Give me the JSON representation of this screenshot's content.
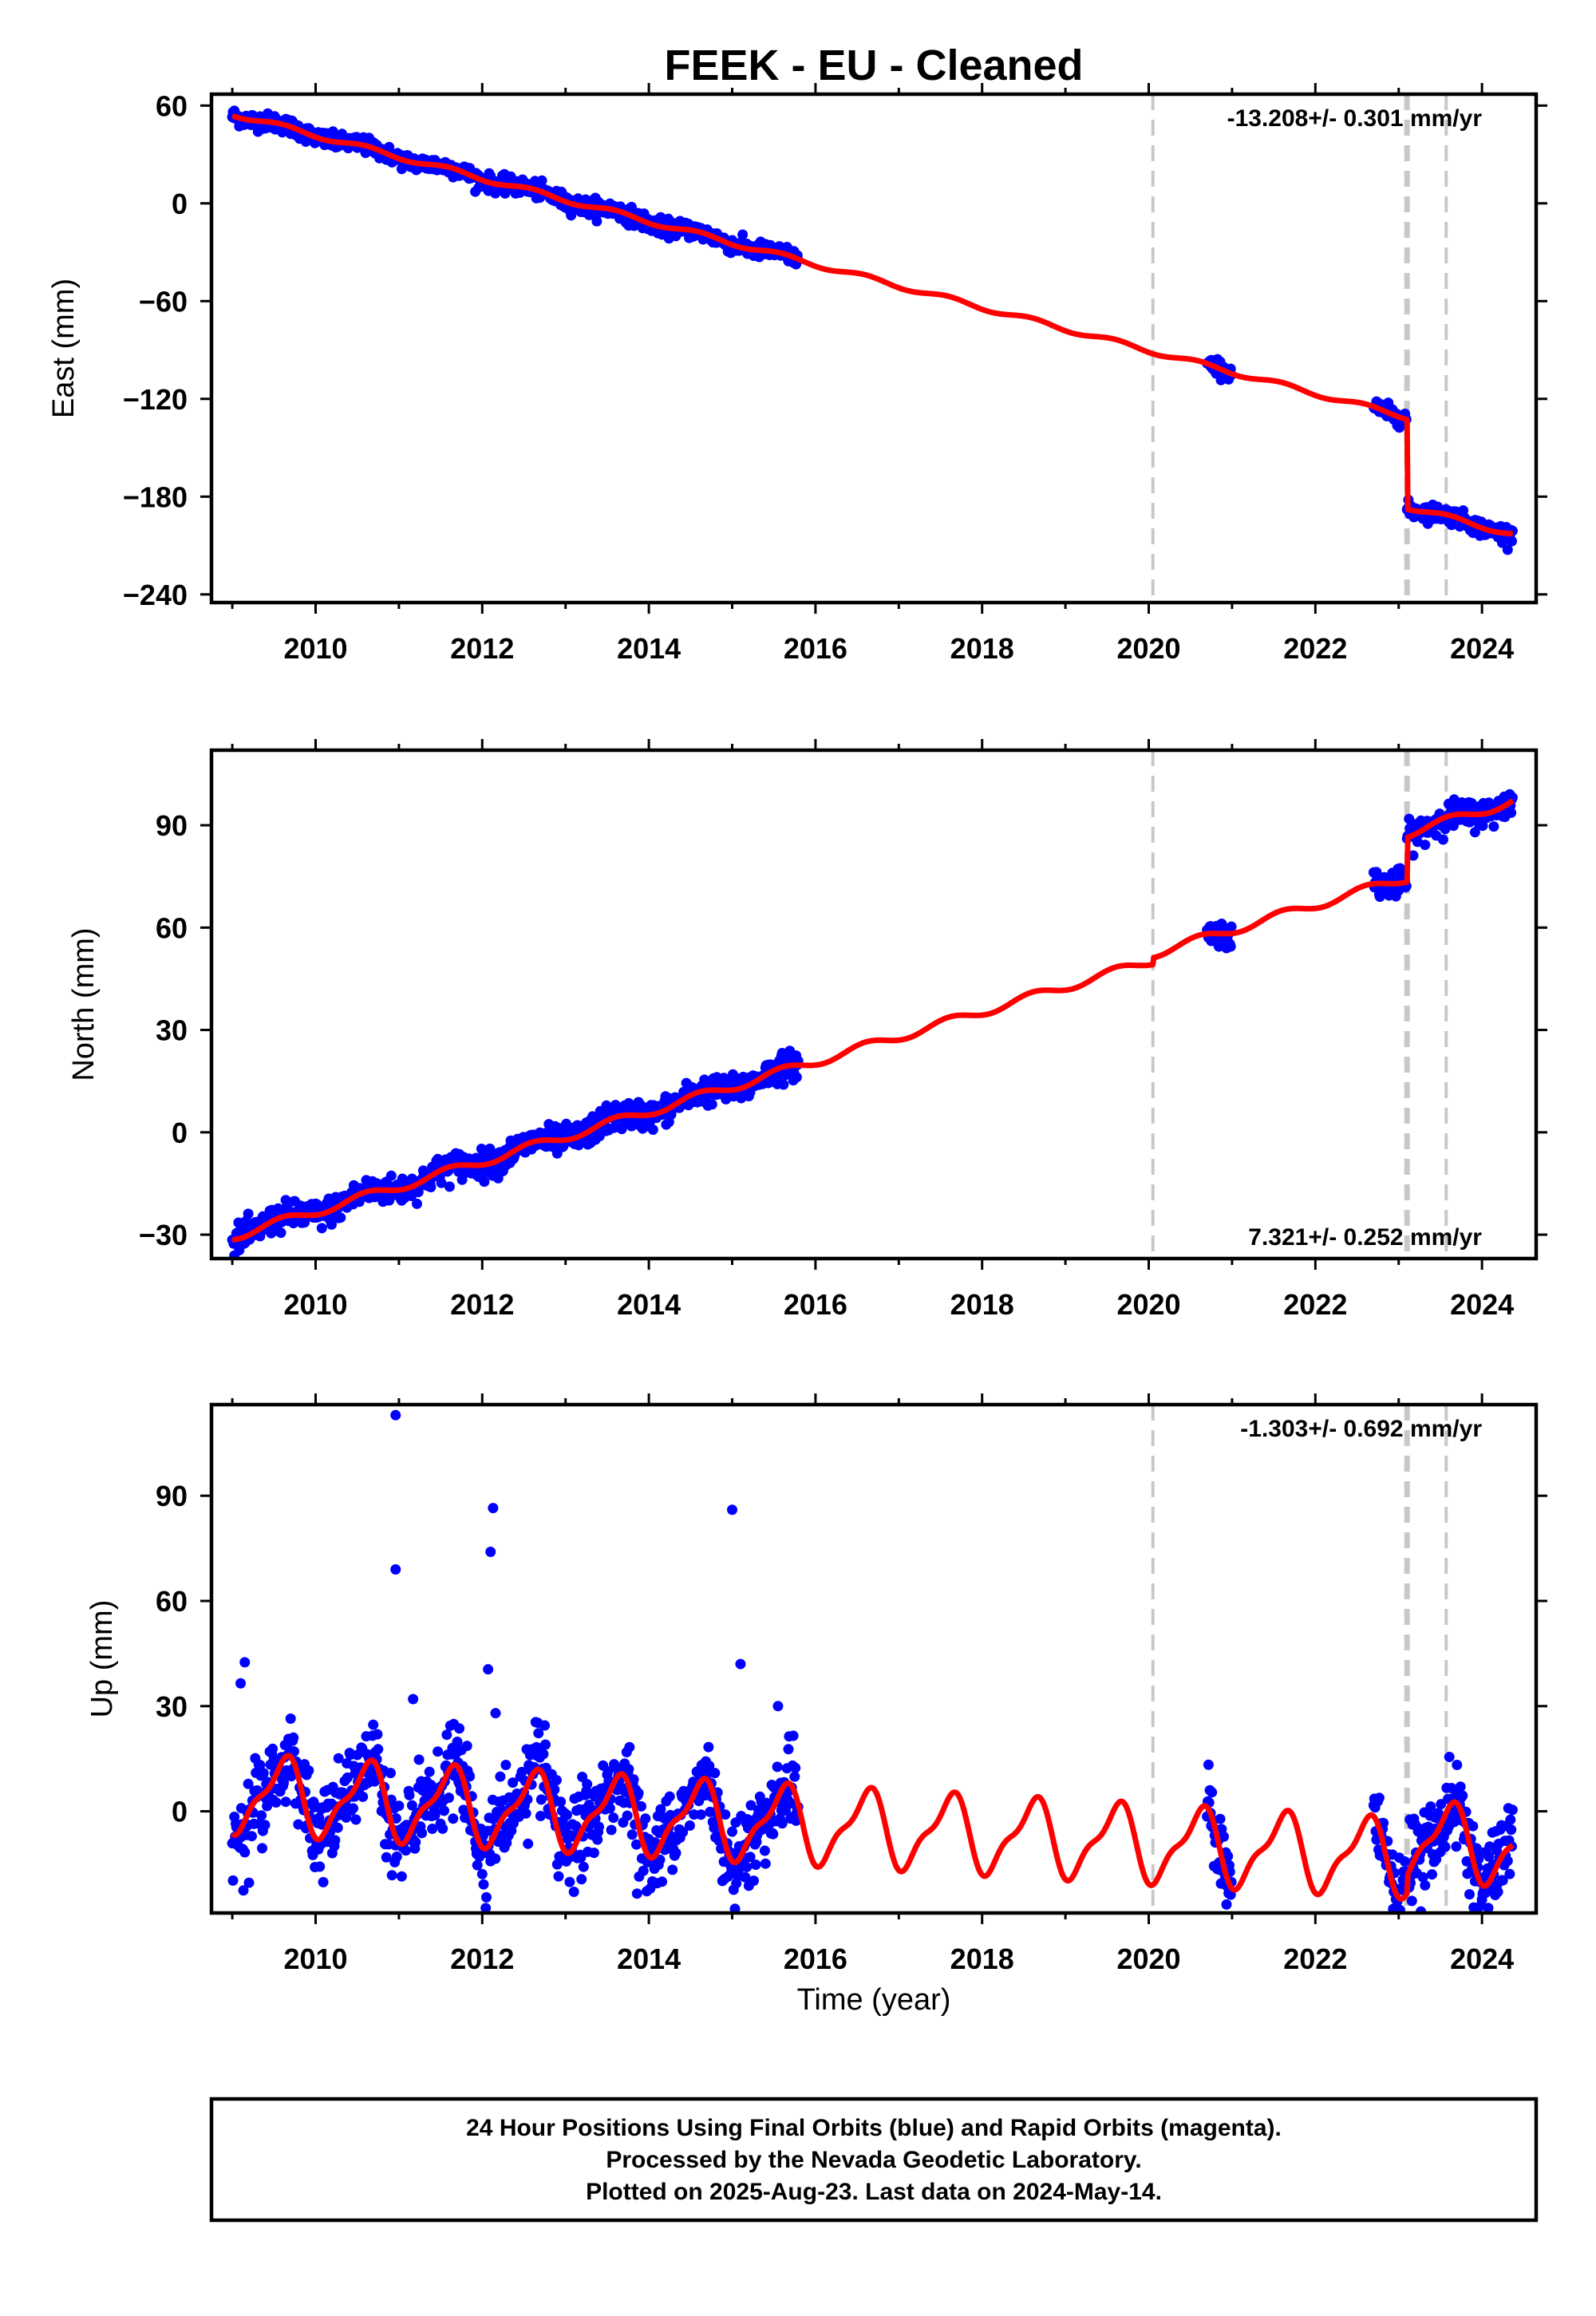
{
  "chart_data": [
    {
      "type": "scatter",
      "title": "FEEK  - EU - Cleaned",
      "ylabel": "East (mm)",
      "rate_label": "-13.208+/- 0.301 mm/yr",
      "xlim": [
        2008.75,
        2024.65
      ],
      "ylim": [
        -245,
        67
      ],
      "xticks": [
        2010,
        2012,
        2014,
        2016,
        2018,
        2020,
        2022,
        2024
      ],
      "yticks": [
        60,
        0,
        -60,
        -120,
        -180,
        -240
      ],
      "ytick_labels": [
        "60",
        "0",
        "−60",
        "−120",
        "−180",
        "−240"
      ],
      "event_lines": [
        2020.05,
        2023.1,
        2023.57
      ],
      "event_line_styles": [
        "thin",
        "thick",
        "thin"
      ],
      "model_rate": -13.208,
      "model_offsets": [
        {
          "x": 2023.1,
          "dy": -55
        }
      ],
      "seasonal_amplitude": 1.5,
      "y0": 55,
      "x0": 2009.0,
      "data_segments": [
        [
          2009.0,
          2015.8
        ],
        [
          2020.7,
          2021.0
        ],
        [
          2022.7,
          2023.1
        ],
        [
          2023.1,
          2024.37
        ]
      ],
      "noise": 2.5,
      "outliers": [],
      "series": [
        {
          "name": "",
          "color": "#0000ff",
          "kind": "points"
        },
        {
          "name": "",
          "color": "#ff0000",
          "kind": "model"
        }
      ]
    },
    {
      "type": "scatter",
      "ylabel": "North (mm)",
      "rate_label": "7.321+/- 0.252 mm/yr",
      "xlim": [
        2008.75,
        2024.65
      ],
      "ylim": [
        -37,
        112
      ],
      "xticks": [
        2010,
        2012,
        2014,
        2016,
        2018,
        2020,
        2022,
        2024
      ],
      "yticks": [
        90,
        60,
        30,
        0,
        -30
      ],
      "ytick_labels": [
        "90",
        "60",
        "30",
        "0",
        "−30"
      ],
      "event_lines": [
        2020.05,
        2023.1,
        2023.57
      ],
      "event_line_styles": [
        "thin",
        "thick",
        "thin"
      ],
      "model_rate": 7.321,
      "model_offsets": [
        {
          "x": 2020.05,
          "dy": 2
        },
        {
          "x": 2023.1,
          "dy": 13
        }
      ],
      "seasonal_amplitude": 1.3,
      "y0": -30.5,
      "x0": 2009.0,
      "data_segments": [
        [
          2009.0,
          2015.8
        ],
        [
          2020.7,
          2021.0
        ],
        [
          2022.7,
          2023.1
        ],
        [
          2023.1,
          2024.37
        ]
      ],
      "noise": 2.0,
      "outliers": [],
      "series": [
        {
          "name": "",
          "color": "#0000ff",
          "kind": "points"
        },
        {
          "name": "",
          "color": "#ff0000",
          "kind": "model"
        }
      ]
    },
    {
      "type": "scatter",
      "ylabel": "Up (mm)",
      "xlabel": "Time (year)",
      "rate_label": "-1.303+/- 0.692 mm/yr",
      "xlim": [
        2008.75,
        2024.65
      ],
      "ylim": [
        -29,
        116
      ],
      "xticks": [
        2010,
        2012,
        2014,
        2016,
        2018,
        2020,
        2022,
        2024
      ],
      "yticks": [
        90,
        60,
        30,
        0
      ],
      "ytick_labels": [
        "90",
        "60",
        "30",
        "0"
      ],
      "event_lines": [
        2020.05,
        2023.1,
        2023.57
      ],
      "event_line_styles": [
        "thin",
        "thick",
        "thin"
      ],
      "model_rate": -1.303,
      "model_offsets": [
        {
          "x": 2023.1,
          "dy": 5
        }
      ],
      "seasonal_amplitude": 10,
      "y0": 5,
      "x0": 2009.0,
      "data_segments": [
        [
          2009.0,
          2015.8
        ],
        [
          2020.7,
          2021.0
        ],
        [
          2022.7,
          2023.1
        ],
        [
          2023.1,
          2024.37
        ]
      ],
      "noise": 5.5,
      "outliers": [
        [
          2009.15,
          42.5
        ],
        [
          2009.1,
          36.5
        ],
        [
          2010.96,
          113
        ],
        [
          2010.96,
          69
        ],
        [
          2011.17,
          32
        ],
        [
          2012.07,
          40.5
        ],
        [
          2012.1,
          74
        ],
        [
          2012.13,
          86.5
        ],
        [
          2012.16,
          28
        ],
        [
          2015.0,
          86
        ],
        [
          2015.1,
          42
        ],
        [
          2015.55,
          30
        ]
      ],
      "series": [
        {
          "name": "",
          "color": "#0000ff",
          "kind": "points"
        },
        {
          "name": "",
          "color": "#ff0000",
          "kind": "model"
        }
      ]
    }
  ],
  "footer": {
    "line1": "24 Hour Positions Using Final Orbits (blue) and Rapid Orbits (magenta).",
    "line2": "Processed by the Nevada Geodetic Laboratory.",
    "line3": "Plotted on 2025-Aug-23. Last data on 2024-May-14."
  },
  "colors": {
    "points": "#0000ff",
    "model": "#ff0000",
    "event_line": "#c8c8c8"
  }
}
